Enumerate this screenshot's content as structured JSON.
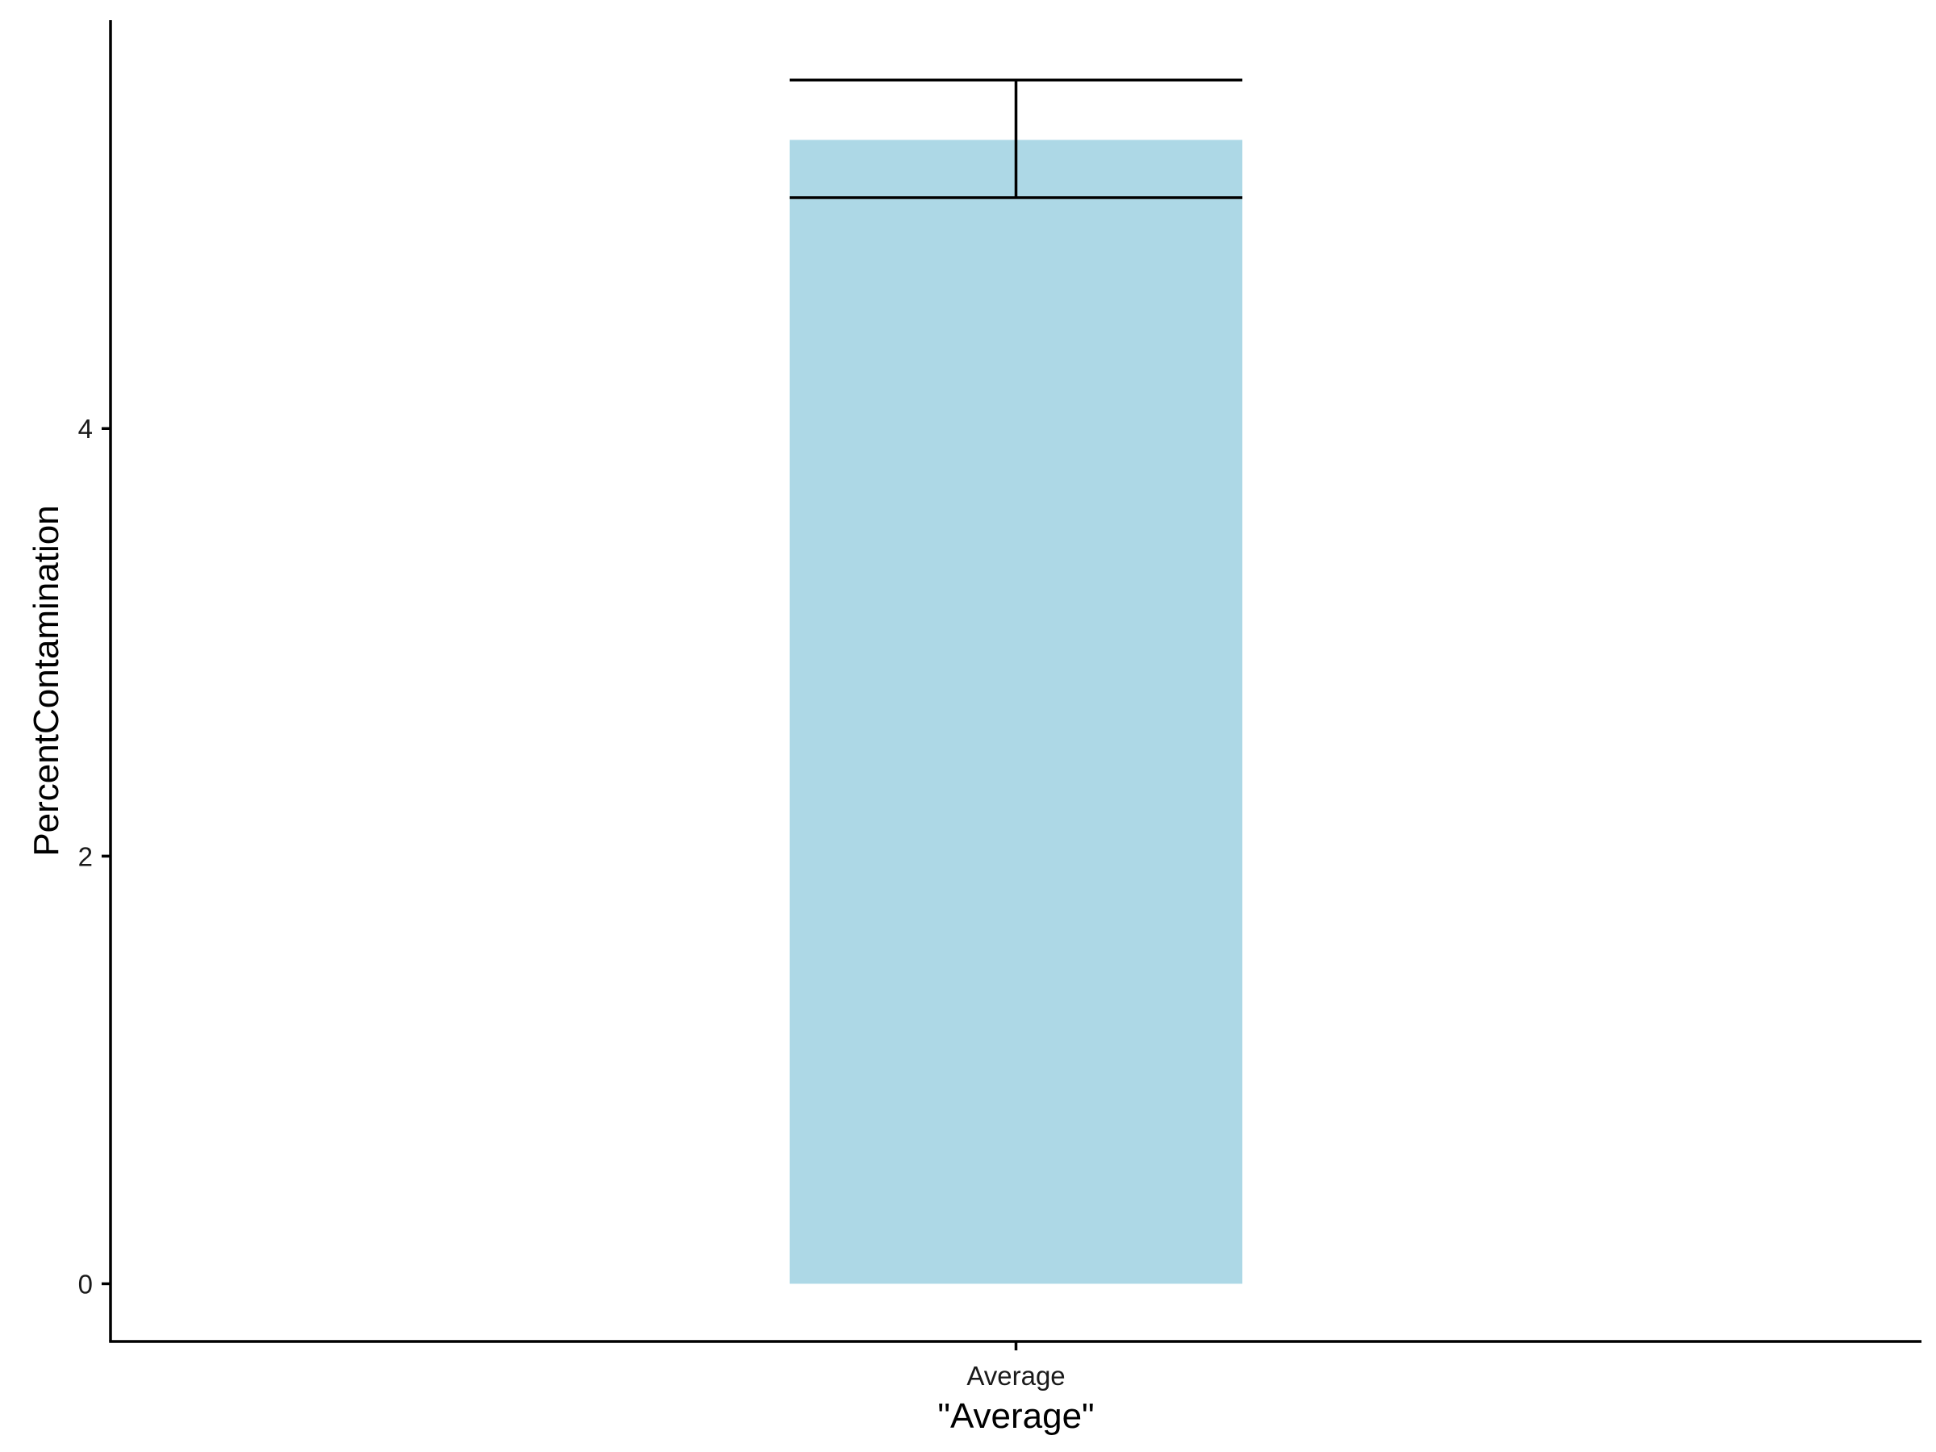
{
  "chart_data": {
    "type": "bar",
    "categories": [
      "Average"
    ],
    "values": [
      5.35
    ],
    "error_bars": [
      {
        "lower": 5.08,
        "upper": 5.63
      }
    ],
    "title": "",
    "xlabel": "\"Average\"",
    "ylabel": "PercentContamination",
    "y_ticks": [
      0,
      2,
      4
    ],
    "ylim": [
      -0.27,
      5.91
    ],
    "grid": false,
    "legend": "none",
    "colors": {
      "bar_fill": "#add8e6",
      "axis": "#000000",
      "error_bar": "#000000"
    }
  }
}
